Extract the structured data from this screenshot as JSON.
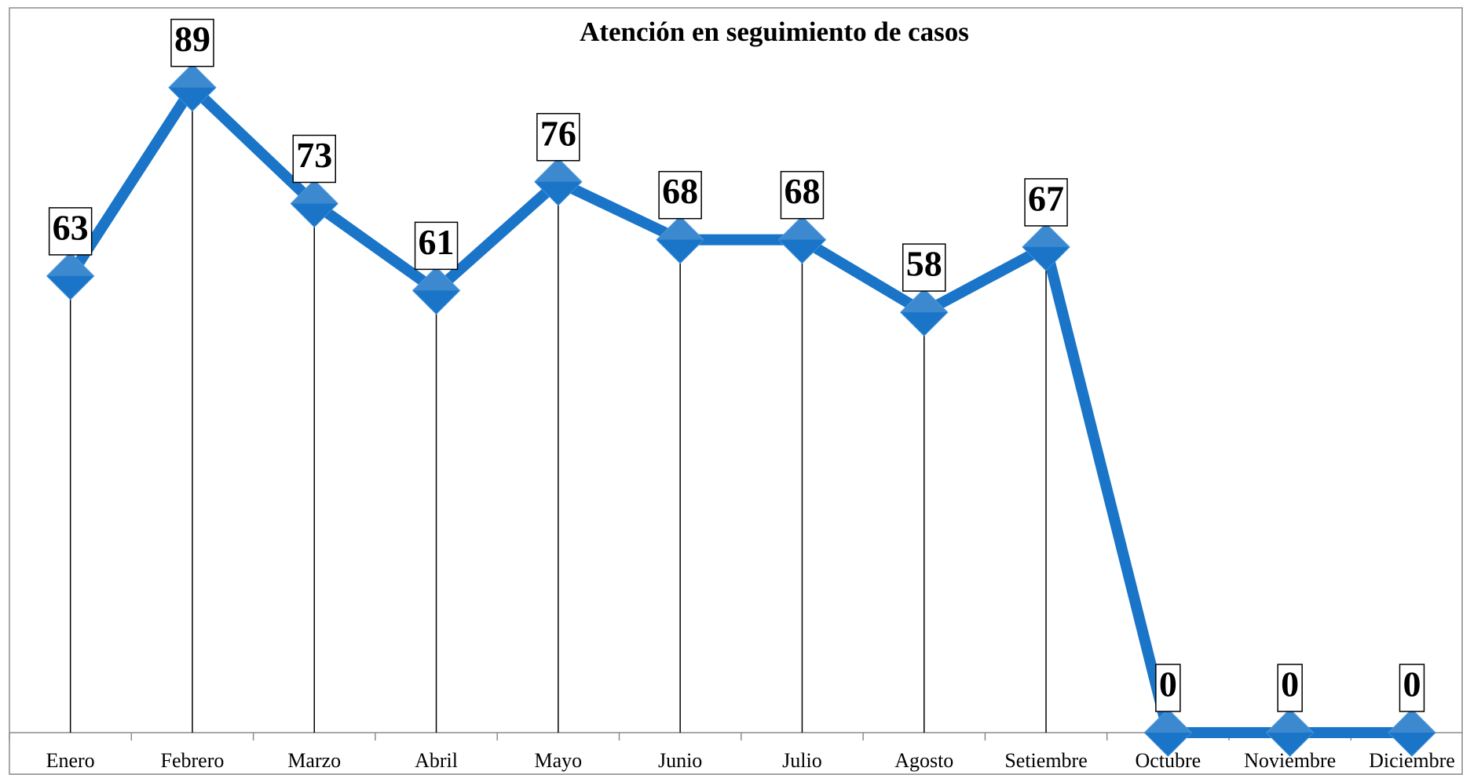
{
  "chart_data": {
    "type": "line",
    "title": "Atención en seguimiento de casos",
    "categories": [
      "Enero",
      "Febrero",
      "Marzo",
      "Abril",
      "Mayo",
      "Junio",
      "Julio",
      "Agosto",
      "Setiembre",
      "Octubre",
      "Noviembre",
      "Diciembre"
    ],
    "values": [
      63,
      89,
      73,
      61,
      76,
      68,
      68,
      58,
      67,
      0,
      0,
      0
    ],
    "color": "#1a75c8",
    "ylim": [
      0,
      100
    ],
    "grid": false
  }
}
